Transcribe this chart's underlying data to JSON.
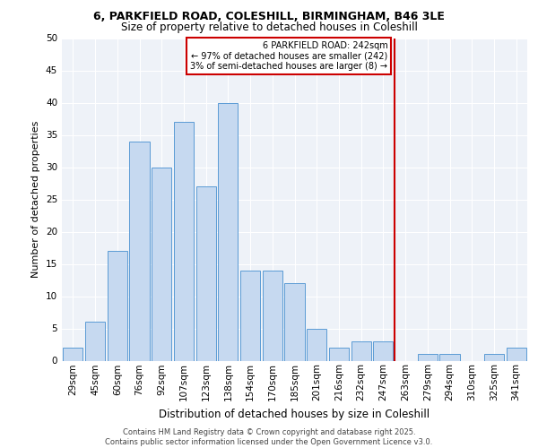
{
  "title1": "6, PARKFIELD ROAD, COLESHILL, BIRMINGHAM, B46 3LE",
  "title2": "Size of property relative to detached houses in Coleshill",
  "xlabel": "Distribution of detached houses by size in Coleshill",
  "ylabel": "Number of detached properties",
  "bar_labels": [
    "29sqm",
    "45sqm",
    "60sqm",
    "76sqm",
    "92sqm",
    "107sqm",
    "123sqm",
    "138sqm",
    "154sqm",
    "170sqm",
    "185sqm",
    "201sqm",
    "216sqm",
    "232sqm",
    "247sqm",
    "263sqm",
    "279sqm",
    "294sqm",
    "310sqm",
    "325sqm",
    "341sqm"
  ],
  "bar_values": [
    2,
    6,
    17,
    34,
    30,
    37,
    27,
    40,
    14,
    14,
    12,
    5,
    2,
    3,
    3,
    0,
    1,
    1,
    0,
    1,
    2
  ],
  "bar_color": "#c6d9f0",
  "bar_edge_color": "#5b9bd5",
  "vline_idx": 14.5,
  "vline_color": "#cc0000",
  "annotation_title": "6 PARKFIELD ROAD: 242sqm",
  "annotation_line1": "← 97% of detached houses are smaller (242)",
  "annotation_line2": "3% of semi-detached houses are larger (8) →",
  "annotation_box_color": "#cc0000",
  "footer1": "Contains HM Land Registry data © Crown copyright and database right 2025.",
  "footer2": "Contains public sector information licensed under the Open Government Licence v3.0.",
  "ylim": [
    0,
    50
  ],
  "yticks": [
    0,
    5,
    10,
    15,
    20,
    25,
    30,
    35,
    40,
    45,
    50
  ],
  "bg_color": "#eef2f8",
  "grid_color": "#ffffff",
  "title1_fontsize": 9,
  "title2_fontsize": 8.5,
  "ylabel_fontsize": 8,
  "xlabel_fontsize": 8.5,
  "tick_fontsize": 7.5,
  "footer_fontsize": 6
}
